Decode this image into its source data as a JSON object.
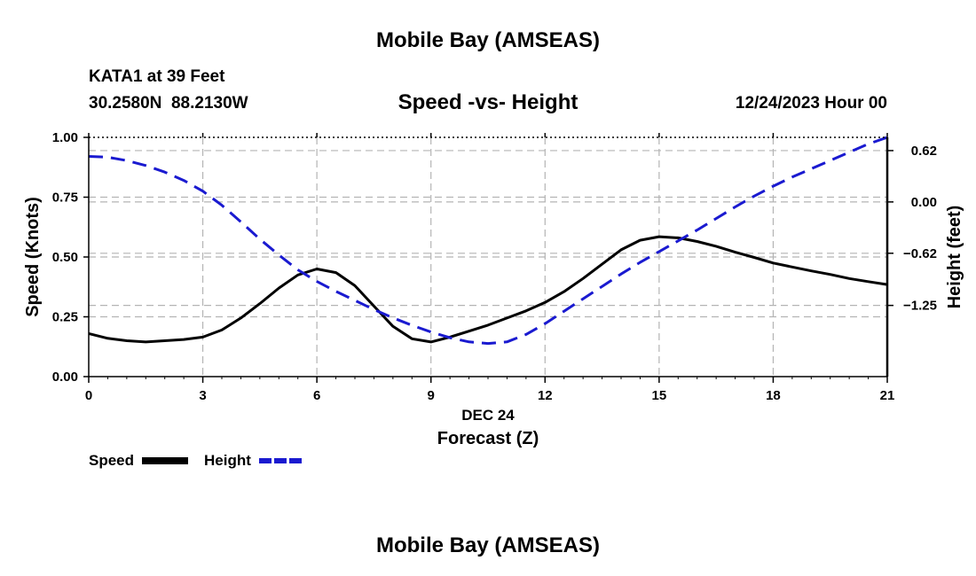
{
  "header": {
    "title": "Mobile Bay (AMSEAS)",
    "station": "KATA1 at 39 Feet",
    "coords": "30.2580N  88.2130W",
    "subtitle": "Speed -vs- Height",
    "datetime": "12/24/2023 Hour 00"
  },
  "footer": {
    "title": "Mobile Bay (AMSEAS)"
  },
  "legend": {
    "speed_label": "Speed",
    "height_label": "Height"
  },
  "colors": {
    "speed": "#000000",
    "height": "#1a1ad0",
    "grid": "#b4b4b4"
  },
  "chart_data": {
    "type": "line",
    "title": "Speed -vs- Height",
    "xlabel": "Forecast (Z)",
    "xsublabel": "DEC 24",
    "ylabel": "Speed (Knots)",
    "y2label": "Height (feet)",
    "xlim": [
      0,
      21
    ],
    "ylim": [
      0,
      1
    ],
    "y2lim": [
      -2.11,
      0.78
    ],
    "x_ticks": [
      0,
      3,
      6,
      9,
      12,
      15,
      18,
      21
    ],
    "x_tick_labels": [
      "0",
      "3",
      "6",
      "9",
      "12",
      "15",
      "18",
      "21"
    ],
    "y_ticks": [
      0,
      0.25,
      0.5,
      0.75,
      1.0
    ],
    "y_tick_labels": [
      "0.00",
      "0.25",
      "0.50",
      "0.75",
      "1.00"
    ],
    "y2_ticks": [
      0.62,
      0.0,
      -0.62,
      -1.25
    ],
    "y2_tick_labels": [
      "0.62",
      "0.00",
      "−0.62",
      "−1.25"
    ],
    "grid": true,
    "series": [
      {
        "name": "Speed",
        "axis": "left",
        "style": "solid",
        "x": [
          0,
          0.5,
          1,
          1.5,
          2,
          2.5,
          3,
          3.5,
          4,
          4.5,
          5,
          5.5,
          6,
          6.5,
          7,
          7.5,
          8,
          8.5,
          9,
          9.5,
          10,
          10.5,
          11,
          11.5,
          12,
          12.5,
          13,
          13.5,
          14,
          14.5,
          15,
          15.5,
          16,
          16.5,
          17,
          17.5,
          18,
          18.5,
          19,
          19.5,
          20,
          20.5,
          21
        ],
        "values": [
          0.18,
          0.16,
          0.15,
          0.145,
          0.15,
          0.155,
          0.165,
          0.195,
          0.245,
          0.305,
          0.37,
          0.425,
          0.45,
          0.435,
          0.38,
          0.295,
          0.21,
          0.158,
          0.145,
          0.165,
          0.19,
          0.215,
          0.245,
          0.275,
          0.31,
          0.355,
          0.41,
          0.47,
          0.53,
          0.57,
          0.585,
          0.58,
          0.565,
          0.545,
          0.52,
          0.498,
          0.475,
          0.458,
          0.442,
          0.427,
          0.41,
          0.397,
          0.385
        ]
      },
      {
        "name": "Height",
        "axis": "right",
        "style": "dashed",
        "x": [
          0,
          0.5,
          1,
          1.5,
          2,
          2.5,
          3,
          3.5,
          4,
          4.5,
          5,
          5.5,
          6,
          6.5,
          7,
          7.5,
          8,
          8.5,
          9,
          9.5,
          10,
          10.5,
          11,
          11.5,
          12,
          12.5,
          13,
          13.5,
          14,
          14.5,
          15,
          15.5,
          16,
          16.5,
          17,
          17.5,
          18,
          18.5,
          19,
          19.5,
          20,
          20.5,
          21
        ],
        "values": [
          0.55,
          0.54,
          0.5,
          0.44,
          0.36,
          0.26,
          0.13,
          -0.04,
          -0.24,
          -0.45,
          -0.64,
          -0.82,
          -0.96,
          -1.08,
          -1.19,
          -1.3,
          -1.4,
          -1.49,
          -1.57,
          -1.64,
          -1.69,
          -1.71,
          -1.69,
          -1.6,
          -1.47,
          -1.32,
          -1.17,
          -1.02,
          -0.87,
          -0.73,
          -0.6,
          -0.47,
          -0.34,
          -0.2,
          -0.06,
          0.07,
          0.19,
          0.3,
          0.4,
          0.5,
          0.6,
          0.7,
          0.78
        ]
      }
    ]
  }
}
